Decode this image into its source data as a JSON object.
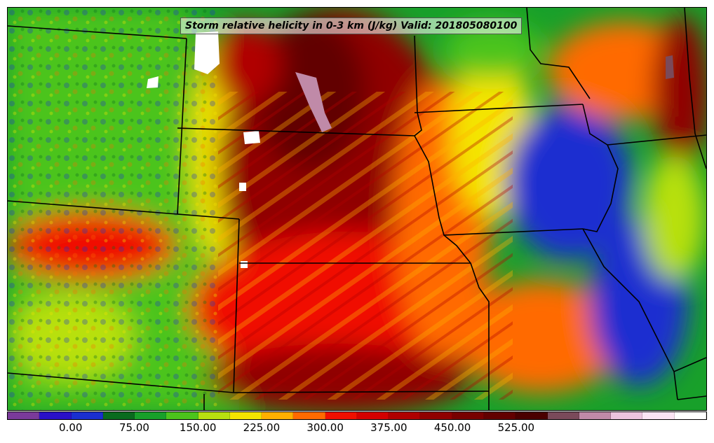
{
  "title": "Storm relative helicity in 0-3 km (J/kg) Valid: 201805080100",
  "colorbar": {
    "colors": [
      "#7a3a9a",
      "#2a10c8",
      "#1a2fd0",
      "#0a6b1e",
      "#18a02a",
      "#4cc41c",
      "#b8e010",
      "#f4e400",
      "#ffb000",
      "#ff6a00",
      "#f01000",
      "#d40000",
      "#b00000",
      "#900000",
      "#780000",
      "#620000",
      "#4a0000",
      "#7a4a5a",
      "#c08aa8",
      "#ecc4de",
      "#fbe4f4",
      "#ffffff"
    ],
    "tick_labels": [
      "0.00",
      "75.00",
      "150.00",
      "225.00",
      "300.00",
      "375.00",
      "450.00",
      "525.00"
    ]
  }
}
